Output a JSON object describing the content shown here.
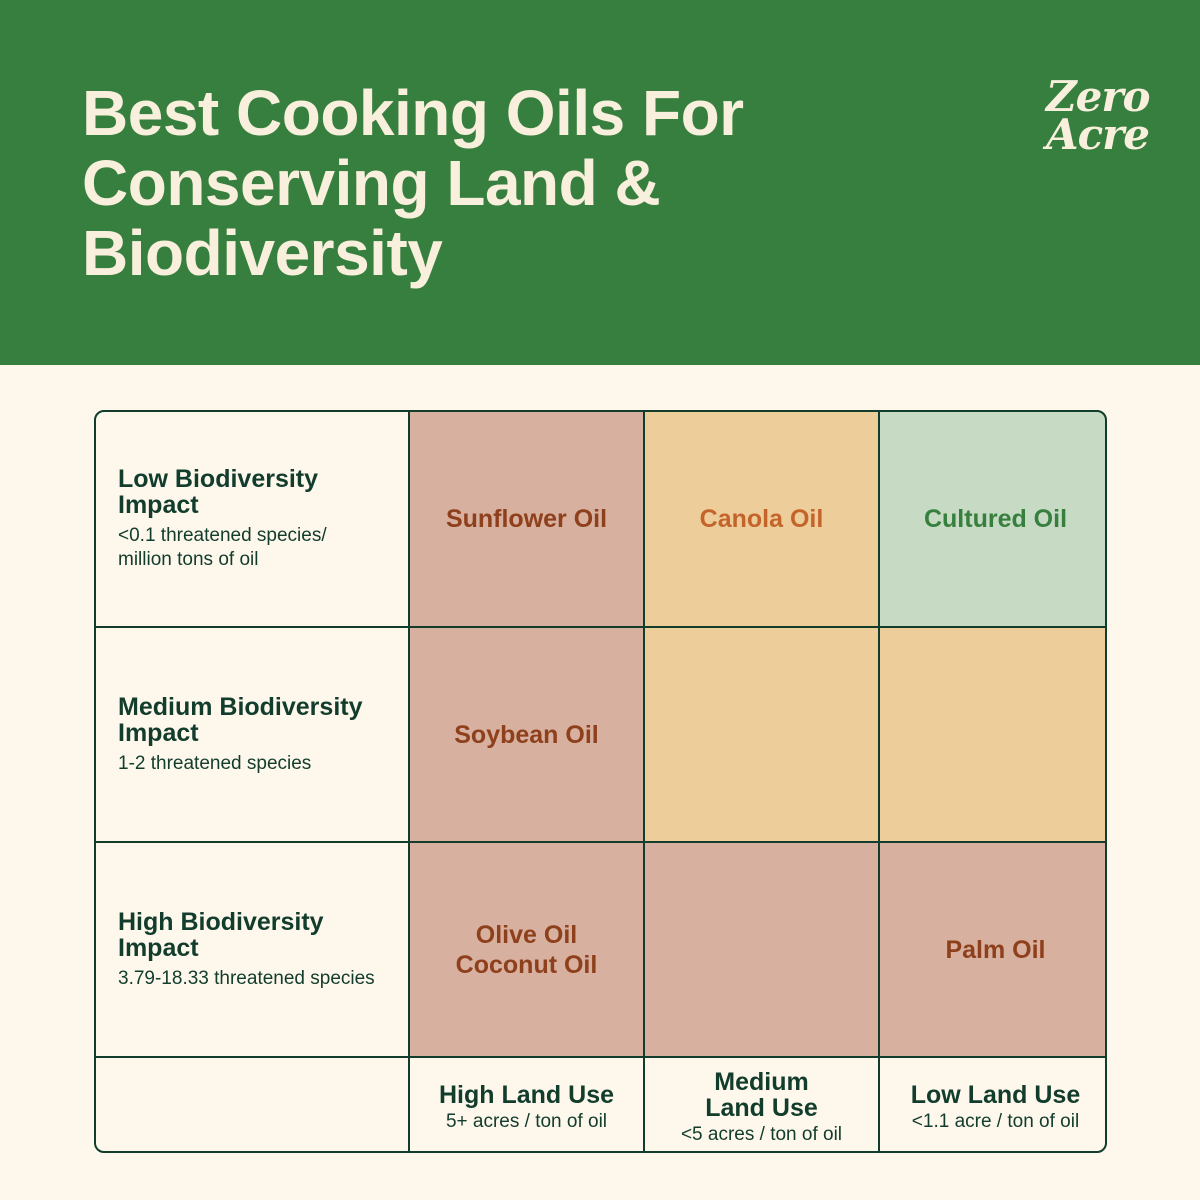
{
  "header": {
    "title_lines": [
      "Best Cooking Oils For",
      "Conserving Land &",
      "Biodiversity"
    ],
    "logo_lines": [
      "Zero",
      "Acre"
    ],
    "background_color": "#377f3e"
  },
  "rows": [
    {
      "title": "Low Biodiversity Impact",
      "subtitle": "<0.1 threatened species/\n million tons of oil"
    },
    {
      "title": "Medium Biodiversity Impact",
      "subtitle": "1-2 threatened species"
    },
    {
      "title": "High Biodiversity Impact",
      "subtitle": "3.79-18.33 threatened species"
    }
  ],
  "columns": [
    {
      "title": "High Land Use",
      "subtitle": "5+ acres / ton of oil"
    },
    {
      "title": "Medium Land Use",
      "subtitle": "<5 acres / ton of oil"
    },
    {
      "title": "Low Land Use",
      "subtitle": "<1.1 acre / ton of oil"
    }
  ],
  "cells": {
    "low_high": [
      "Sunflower Oil"
    ],
    "low_medium": [
      "Canola Oil"
    ],
    "low_low": [
      "Cultured Oil"
    ],
    "medium_high": [
      "Soybean Oil"
    ],
    "medium_medium": [],
    "medium_low": [],
    "high_high": [
      "Olive Oil",
      "Coconut Oil"
    ],
    "high_medium": [],
    "high_low": [
      "Palm Oil"
    ]
  },
  "colors": {
    "pink": "#d7b09f",
    "tan": "#edcd9a",
    "green": "#c7dbc4",
    "dark_text": "#123c2c"
  }
}
